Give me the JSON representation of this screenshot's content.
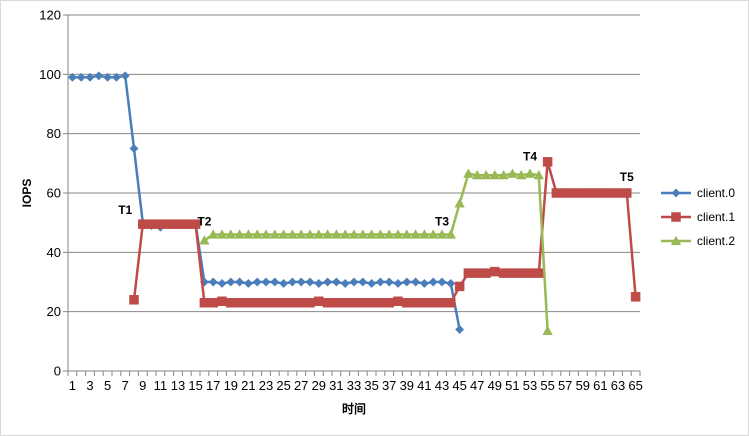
{
  "chart_data": {
    "type": "line",
    "title": "",
    "xlabel": "时间",
    "ylabel": "IOPS",
    "ylim": [
      0,
      120
    ],
    "yticks": [
      0,
      20,
      40,
      60,
      80,
      100,
      120
    ],
    "xticks": [
      1,
      3,
      5,
      7,
      9,
      11,
      13,
      15,
      17,
      19,
      21,
      23,
      25,
      27,
      29,
      31,
      33,
      35,
      37,
      39,
      41,
      43,
      45,
      47,
      49,
      51,
      53,
      55,
      57,
      59,
      61,
      63,
      65
    ],
    "grid": true,
    "legend_position": "right",
    "series": [
      {
        "name": "client.0",
        "color": "#4a7ebb",
        "marker": "diamond",
        "points": [
          [
            1,
            99
          ],
          [
            2,
            99
          ],
          [
            3,
            99
          ],
          [
            4,
            99.5
          ],
          [
            5,
            99
          ],
          [
            6,
            99
          ],
          [
            7,
            99.5
          ],
          [
            8,
            75
          ],
          [
            9,
            50
          ],
          [
            10,
            49
          ],
          [
            11,
            48.5
          ],
          [
            12,
            49.5
          ],
          [
            13,
            49.5
          ],
          [
            14,
            49.5
          ],
          [
            15,
            49.5
          ],
          [
            16,
            30
          ],
          [
            17,
            30
          ],
          [
            18,
            29.5
          ],
          [
            19,
            30
          ],
          [
            20,
            30
          ],
          [
            21,
            29.5
          ],
          [
            22,
            30
          ],
          [
            23,
            30
          ],
          [
            24,
            30
          ],
          [
            25,
            29.5
          ],
          [
            26,
            30
          ],
          [
            27,
            30
          ],
          [
            28,
            30
          ],
          [
            29,
            29.5
          ],
          [
            30,
            30
          ],
          [
            31,
            30
          ],
          [
            32,
            29.5
          ],
          [
            33,
            30
          ],
          [
            34,
            30
          ],
          [
            35,
            29.5
          ],
          [
            36,
            30
          ],
          [
            37,
            30
          ],
          [
            38,
            29.5
          ],
          [
            39,
            30
          ],
          [
            40,
            30
          ],
          [
            41,
            29.5
          ],
          [
            42,
            30
          ],
          [
            43,
            30
          ],
          [
            44,
            29.5
          ],
          [
            45,
            14
          ]
        ]
      },
      {
        "name": "client.1",
        "color": "#be4b48",
        "marker": "square",
        "points": [
          [
            8,
            24
          ],
          [
            9,
            49.5
          ],
          [
            10,
            49.5
          ],
          [
            11,
            49.5
          ],
          [
            12,
            49.5
          ],
          [
            13,
            49.5
          ],
          [
            14,
            49.5
          ],
          [
            15,
            49.5
          ],
          [
            16,
            23
          ],
          [
            17,
            23
          ],
          [
            18,
            23.5
          ],
          [
            19,
            23
          ],
          [
            20,
            23
          ],
          [
            21,
            23
          ],
          [
            22,
            23
          ],
          [
            23,
            23
          ],
          [
            24,
            23
          ],
          [
            25,
            23
          ],
          [
            26,
            23
          ],
          [
            27,
            23
          ],
          [
            28,
            23
          ],
          [
            29,
            23.5
          ],
          [
            30,
            23
          ],
          [
            31,
            23
          ],
          [
            32,
            23
          ],
          [
            33,
            23
          ],
          [
            34,
            23
          ],
          [
            35,
            23
          ],
          [
            36,
            23
          ],
          [
            37,
            23
          ],
          [
            38,
            23.5
          ],
          [
            39,
            23
          ],
          [
            40,
            23
          ],
          [
            41,
            23
          ],
          [
            42,
            23
          ],
          [
            43,
            23
          ],
          [
            44,
            23
          ],
          [
            45,
            28.5
          ],
          [
            46,
            33
          ],
          [
            47,
            33
          ],
          [
            48,
            33
          ],
          [
            49,
            33.5
          ],
          [
            50,
            33
          ],
          [
            51,
            33
          ],
          [
            52,
            33
          ],
          [
            53,
            33
          ],
          [
            54,
            33
          ],
          [
            55,
            70.5
          ],
          [
            56,
            60
          ],
          [
            57,
            60
          ],
          [
            58,
            60
          ],
          [
            59,
            60
          ],
          [
            60,
            60
          ],
          [
            61,
            60
          ],
          [
            62,
            60
          ],
          [
            63,
            60
          ],
          [
            64,
            60
          ],
          [
            65,
            25
          ]
        ]
      },
      {
        "name": "client.2",
        "color": "#98b954",
        "marker": "triangle",
        "points": [
          [
            16,
            44
          ],
          [
            17,
            46
          ],
          [
            18,
            46
          ],
          [
            19,
            46
          ],
          [
            20,
            46
          ],
          [
            21,
            46
          ],
          [
            22,
            46
          ],
          [
            23,
            46
          ],
          [
            24,
            46
          ],
          [
            25,
            46
          ],
          [
            26,
            46
          ],
          [
            27,
            46
          ],
          [
            28,
            46
          ],
          [
            29,
            46
          ],
          [
            30,
            46
          ],
          [
            31,
            46
          ],
          [
            32,
            46
          ],
          [
            33,
            46
          ],
          [
            34,
            46
          ],
          [
            35,
            46
          ],
          [
            36,
            46
          ],
          [
            37,
            46
          ],
          [
            38,
            46
          ],
          [
            39,
            46
          ],
          [
            40,
            46
          ],
          [
            41,
            46
          ],
          [
            42,
            46
          ],
          [
            43,
            46
          ],
          [
            44,
            46
          ],
          [
            45,
            56.5
          ],
          [
            46,
            66.5
          ],
          [
            47,
            66
          ],
          [
            48,
            66
          ],
          [
            49,
            66
          ],
          [
            50,
            66
          ],
          [
            51,
            66.5
          ],
          [
            52,
            66
          ],
          [
            53,
            66.5
          ],
          [
            54,
            66
          ],
          [
            55,
            13.5
          ]
        ]
      }
    ],
    "annotations": [
      {
        "text": "T1",
        "x": 7,
        "y": 53
      },
      {
        "text": "T2",
        "x": 16,
        "y": 49
      },
      {
        "text": "T3",
        "x": 43,
        "y": 49
      },
      {
        "text": "T4",
        "x": 53,
        "y": 71
      },
      {
        "text": "T5",
        "x": 64,
        "y": 64
      }
    ]
  }
}
